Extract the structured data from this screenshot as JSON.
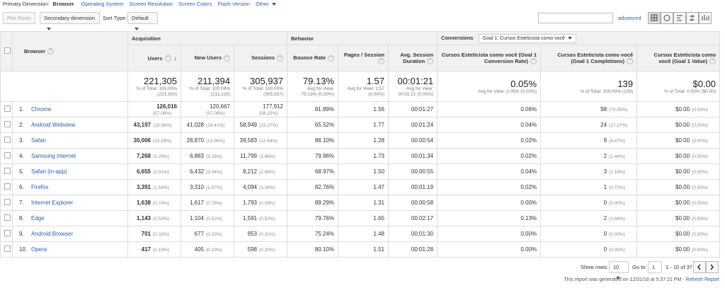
{
  "nav": {
    "label": "Primary Dimension:",
    "active": "Browser",
    "links": [
      "Operating System",
      "Screen Resolution",
      "Screen Colors",
      "Flash Version",
      "Other"
    ]
  },
  "toolbar": {
    "plot_rows": "Plot Rows",
    "secondary": "Secondary dimension",
    "sort_label": "Sort Type:",
    "sort_value": "Default",
    "advanced": "advanced"
  },
  "table": {
    "groups": [
      "Acquisition",
      "Behavior",
      "Conversions"
    ],
    "goal_select": "Goal 1: Cursos Esteticista como você",
    "dimension_header": "Browser",
    "columns": [
      "Users",
      "New Users",
      "Sessions",
      "Bounce Rate",
      "Pages / Session",
      "Avg. Session Duration",
      "Cursos Esteticista como você (Goal 1 Conversion Rate)",
      "Cursos Esteticista como você (Goal 1 Completions)",
      "Cursos Esteticista como você (Goal 1 Value)"
    ],
    "totals": [
      [
        "221,305",
        "% of Total: 100.00% (221,305)"
      ],
      [
        "211,394",
        "% of Total: 100.08% (211,229)"
      ],
      [
        "305,937",
        "% of Total: 100.00% (305,937)"
      ],
      [
        "79.13%",
        "Avg for View: 79.13% (0.00%)"
      ],
      [
        "1.57",
        "Avg for View: 1.57 (0.00%)"
      ],
      [
        "00:01:21",
        "Avg for View: 00:01:21 (0.00%)"
      ],
      [
        "0.05%",
        "Avg for View: 0.05% (0.00%)"
      ],
      [
        "139",
        "% of Total: 100.00% (139)"
      ],
      [
        "$0.00",
        "% of Total: 0.00% ($0.00)"
      ]
    ],
    "rows": [
      {
        "index": "1.",
        "browser": "Chrome",
        "cells": [
          [
            "126,016",
            "(57.06%)"
          ],
          [
            "120,667",
            "(57.08%)"
          ],
          [
            "177,912",
            "(58.15%)"
          ],
          [
            "81.89%"
          ],
          [
            "1.56"
          ],
          [
            "00:01:27"
          ],
          [
            "0.06%"
          ],
          [
            "98",
            "(70.50%)"
          ],
          [
            "$0.00",
            "(0.00%)"
          ]
        ]
      },
      {
        "index": "2.",
        "browser": "Android Webview",
        "cells": [
          [
            "43,197",
            "(19.56%)"
          ],
          [
            "41,028",
            "(19.41%)"
          ],
          [
            "58,949",
            "(19.27%)"
          ],
          [
            "65.52%"
          ],
          [
            "1.77"
          ],
          [
            "00:01:24"
          ],
          [
            "0.04%"
          ],
          [
            "24",
            "(17.27%)"
          ],
          [
            "$0.00",
            "(0.00%)"
          ]
        ]
      },
      {
        "index": "3.",
        "browser": "Safari",
        "cells": [
          [
            "30,006",
            "(13.59%)"
          ],
          [
            "28,870",
            "(13.66%)"
          ],
          [
            "39,583",
            "(12.94%)"
          ],
          [
            "88.10%"
          ],
          [
            "1.28"
          ],
          [
            "00:00:54"
          ],
          [
            "0.02%"
          ],
          [
            "9",
            "(6.47%)"
          ],
          [
            "$0.00",
            "(0.00%)"
          ]
        ]
      },
      {
        "index": "4.",
        "browser": "Samsung Internet",
        "cells": [
          [
            "7,268",
            "(3.29%)"
          ],
          [
            "6,883",
            "(3.26%)"
          ],
          [
            "11,799",
            "(3.86%)"
          ],
          [
            "79.96%"
          ],
          [
            "1.73"
          ],
          [
            "00:01:34"
          ],
          [
            "0.02%"
          ],
          [
            "2",
            "(1.44%)"
          ],
          [
            "$0.00",
            "(0.00%)"
          ]
        ]
      },
      {
        "index": "5.",
        "browser": "Safari (in-app)",
        "cells": [
          [
            "6,655",
            "(3.01%)"
          ],
          [
            "6,432",
            "(3.04%)"
          ],
          [
            "8,212",
            "(2.68%)"
          ],
          [
            "68.97%"
          ],
          [
            "1.50"
          ],
          [
            "00:00:55"
          ],
          [
            "0.04%"
          ],
          [
            "3",
            "(2.16%)"
          ],
          [
            "$0.00",
            "(0.00%)"
          ]
        ]
      },
      {
        "index": "6.",
        "browser": "Firefox",
        "cells": [
          [
            "3,391",
            "(1.54%)"
          ],
          [
            "3,310",
            "(1.57%)"
          ],
          [
            "4,094",
            "(1.34%)"
          ],
          [
            "82.76%"
          ],
          [
            "1.47"
          ],
          [
            "00:01:19"
          ],
          [
            "0.02%"
          ],
          [
            "1",
            "(0.72%)"
          ],
          [
            "$0.00",
            "(0.00%)"
          ]
        ]
      },
      {
        "index": "7.",
        "browser": "Internet Explorer",
        "cells": [
          [
            "1,638",
            "(0.74%)"
          ],
          [
            "1,617",
            "(0.76%)"
          ],
          [
            "1,793",
            "(0.59%)"
          ],
          [
            "89.29%"
          ],
          [
            "1.31"
          ],
          [
            "00:00:58"
          ],
          [
            "0.00%"
          ],
          [
            "0",
            "(0.00%)"
          ],
          [
            "$0.00",
            "(0.00%)"
          ]
        ]
      },
      {
        "index": "8.",
        "browser": "Edge",
        "cells": [
          [
            "1,143",
            "(0.52%)"
          ],
          [
            "1,104",
            "(0.52%)"
          ],
          [
            "1,591",
            "(0.52%)"
          ],
          [
            "79.76%"
          ],
          [
            "1.65"
          ],
          [
            "00:02:17"
          ],
          [
            "0.13%"
          ],
          [
            "2",
            "(1.44%)"
          ],
          [
            "$0.00",
            "(0.00%)"
          ]
        ]
      },
      {
        "index": "9.",
        "browser": "Android Browser",
        "cells": [
          [
            "701",
            "(0.32%)"
          ],
          [
            "677",
            "(0.32%)"
          ],
          [
            "953",
            "(0.31%)"
          ],
          [
            "75.24%"
          ],
          [
            "1.48"
          ],
          [
            "00:01:30"
          ],
          [
            "0.00%"
          ],
          [
            "0",
            "(0.00%)"
          ],
          [
            "$0.00",
            "(0.00%)"
          ]
        ]
      },
      {
        "index": "10.",
        "browser": "Opera",
        "cells": [
          [
            "417",
            "(0.19%)"
          ],
          [
            "405",
            "(0.19%)"
          ],
          [
            "598",
            "(0.20%)"
          ],
          [
            "80.10%"
          ],
          [
            "1.51"
          ],
          [
            "00:01:28"
          ],
          [
            "0.00%"
          ],
          [
            "0",
            "(0.00%)"
          ],
          [
            "$0.00",
            "(0.00%)"
          ]
        ]
      }
    ]
  },
  "footer": {
    "show_rows": "Show rows:",
    "rows_value": "10",
    "go_to": "Go to:",
    "page_value": "1",
    "range": "1 - 10 of 37",
    "generated": "This report was generated on 12/31/18 at 5:37:21 PM - ",
    "refresh": "Refresh Report"
  }
}
